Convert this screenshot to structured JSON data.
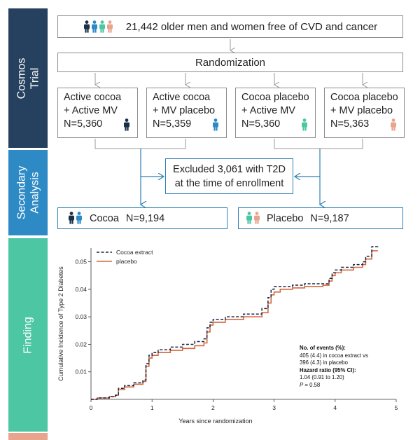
{
  "sections": {
    "trial": "Cosmos\nTrial",
    "secondary": "Secondary\nAnalysis",
    "finding": "Finding"
  },
  "top_box": {
    "text": "21,442 older men and women free of CVD and cancer"
  },
  "randomization": {
    "text": "Randomization"
  },
  "arms": [
    {
      "line1": "Active cocoa",
      "line2": "+ Active MV",
      "n": "N=5,360",
      "icon_color": "#1b2f46"
    },
    {
      "line1": "Active cocoa",
      "line2": "+ MV placebo",
      "n": "N=5,359",
      "icon_color": "#2d8ac4"
    },
    {
      "line1": "Cocoa placebo",
      "line2": "+ Active MV",
      "n": "N=5,360",
      "icon_color": "#4cc6a3"
    },
    {
      "line1": "Cocoa placebo",
      "line2": "+ MV placebo",
      "n": "N=5,363",
      "icon_color": "#e8a48d"
    }
  ],
  "excluded": {
    "line1": "Excluded 3,061 with T2D",
    "line2": "at the time of enrollment"
  },
  "groups": {
    "cocoa": {
      "label": "Cocoa",
      "n": "N=9,194"
    },
    "placebo": {
      "label": "Placebo",
      "n": "N=9,187"
    }
  },
  "colors": {
    "navy": "#1b2f46",
    "blue": "#2d8ac4",
    "teal": "#4cc6a3",
    "salmon": "#e8a48d",
    "cocoa_line": "#1a2540",
    "placebo_line": "#d2693f"
  },
  "chart_data": {
    "type": "line",
    "xlabel": "Years since randomization",
    "ylabel": "Cumulative Incidence of Type 2 Diabetes",
    "xlim": [
      0,
      5
    ],
    "ylim": [
      0,
      0.055
    ],
    "xticks": [
      "0",
      "1",
      "2",
      "3",
      "4",
      "5"
    ],
    "yticks": [
      "0.01",
      "0.02",
      "0.03",
      "0.04",
      "0.05"
    ],
    "legend_position": "top-left",
    "series": [
      {
        "name": "Cocoa extract",
        "style": "dashed",
        "x": [
          0,
          0.1,
          0.3,
          0.4,
          0.45,
          0.55,
          0.7,
          0.85,
          0.9,
          0.95,
          1.0,
          1.1,
          1.3,
          1.5,
          1.7,
          1.85,
          1.9,
          1.95,
          2.0,
          2.2,
          2.5,
          2.8,
          2.9,
          2.95,
          3.0,
          3.1,
          3.3,
          3.5,
          3.8,
          3.9,
          3.95,
          4.0,
          4.1,
          4.3,
          4.45,
          4.5,
          4.6,
          4.7
        ],
        "y": [
          0,
          0.0005,
          0.001,
          0.0015,
          0.004,
          0.005,
          0.006,
          0.007,
          0.013,
          0.016,
          0.017,
          0.018,
          0.019,
          0.02,
          0.021,
          0.022,
          0.026,
          0.028,
          0.029,
          0.03,
          0.031,
          0.033,
          0.037,
          0.04,
          0.041,
          0.041,
          0.0415,
          0.042,
          0.042,
          0.044,
          0.046,
          0.047,
          0.048,
          0.049,
          0.05,
          0.052,
          0.0555,
          0.056
        ]
      },
      {
        "name": "placebo",
        "style": "solid",
        "x": [
          0,
          0.1,
          0.3,
          0.4,
          0.45,
          0.55,
          0.7,
          0.85,
          0.9,
          0.95,
          1.0,
          1.1,
          1.3,
          1.5,
          1.7,
          1.85,
          1.9,
          1.95,
          2.0,
          2.2,
          2.5,
          2.8,
          2.9,
          2.95,
          3.0,
          3.1,
          3.3,
          3.5,
          3.8,
          3.9,
          3.95,
          4.0,
          4.1,
          4.3,
          4.45,
          4.5,
          4.6,
          4.7
        ],
        "y": [
          0,
          0.0005,
          0.001,
          0.0015,
          0.0035,
          0.0045,
          0.0055,
          0.0065,
          0.012,
          0.015,
          0.016,
          0.017,
          0.0178,
          0.0185,
          0.0195,
          0.0205,
          0.0245,
          0.027,
          0.028,
          0.029,
          0.03,
          0.0315,
          0.035,
          0.038,
          0.039,
          0.04,
          0.0405,
          0.041,
          0.0415,
          0.043,
          0.045,
          0.046,
          0.047,
          0.048,
          0.049,
          0.051,
          0.054,
          0.054
        ]
      }
    ],
    "annotation": {
      "events_title": "No. of events (%):",
      "events_line1": "405 (4.4) in cocoa extract vs",
      "events_line2": "396 (4.3) in placebo",
      "hr_title": "Hazard ratio (95% CI):",
      "hr_value": "1.04 (0.91 to 1.20)",
      "p_label": "P",
      "p_value": " = 0.58"
    }
  }
}
